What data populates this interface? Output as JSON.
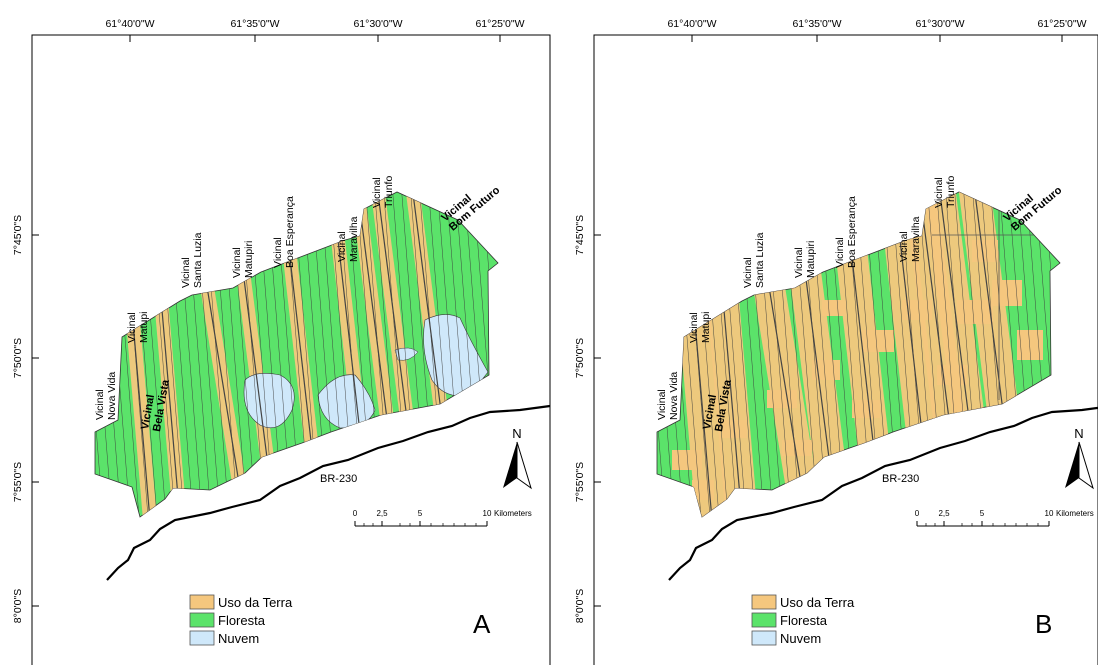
{
  "panels": [
    {
      "id": "A",
      "panel_letter": "A",
      "lon_labels": [
        "61°40'0\"W",
        "61°35'0\"W",
        "61°30'0\"W",
        "61°25'0\"W"
      ],
      "lat_labels": [
        "7°45'0\"S",
        "7°50'0\"S",
        "7°55'0\"S",
        "8°0'0\"S"
      ],
      "road_label": "BR-230",
      "north_label": "N",
      "scalebar": {
        "ticks": [
          "0",
          "2,5",
          "5",
          "10"
        ],
        "unit": "Kilometers"
      },
      "legend": [
        {
          "label": "Uso da Terra",
          "color": "#f5c77e"
        },
        {
          "label": "Floresta",
          "color": "#5be36a"
        },
        {
          "label": "Nuvem",
          "color": "#cfe8fa"
        }
      ],
      "roads": [
        {
          "lines": [
            "Vicinal",
            "Nova Vida"
          ]
        },
        {
          "lines": [
            "Vicinal",
            "Bela Vista"
          ]
        },
        {
          "lines": [
            "Vicinal",
            "Matupi"
          ]
        },
        {
          "lines": [
            "Vicinal",
            "Santa Luzia"
          ]
        },
        {
          "lines": [
            "Vicinal",
            "Matupiri"
          ]
        },
        {
          "lines": [
            "Vicinal",
            "Boa Esperança"
          ]
        },
        {
          "lines": [
            "Vicinal",
            "Maravilha"
          ]
        },
        {
          "lines": [
            "Vicinal",
            "Triunfo"
          ]
        },
        {
          "lines": [
            "Vicinal",
            "Bom Futuro"
          ]
        }
      ]
    },
    {
      "id": "B",
      "panel_letter": "B",
      "lon_labels": [
        "61°40'0\"W",
        "61°35'0\"W",
        "61°30'0\"W",
        "61°25'0\"W"
      ],
      "lat_labels": [
        "7°45'0\"S",
        "7°50'0\"S",
        "7°55'0\"S",
        "8°0'0\"S"
      ],
      "road_label": "BR-230",
      "north_label": "N",
      "scalebar": {
        "ticks": [
          "0",
          "2,5",
          "5",
          "10"
        ],
        "unit": "Kilometers"
      },
      "legend": [
        {
          "label": "Uso da Terra",
          "color": "#f5c77e"
        },
        {
          "label": "Floresta",
          "color": "#5be36a"
        },
        {
          "label": "Nuvem",
          "color": "#cfe8fa"
        }
      ],
      "roads": [
        {
          "lines": [
            "Vicinal",
            "Nova Vida"
          ]
        },
        {
          "lines": [
            "Vicinal",
            "Bela Vista"
          ]
        },
        {
          "lines": [
            "Vicinal",
            "Matupi"
          ]
        },
        {
          "lines": [
            "Vicinal",
            "Santa Luzia"
          ]
        },
        {
          "lines": [
            "Vicinal",
            "Matupiri"
          ]
        },
        {
          "lines": [
            "Vicinal",
            "Boa Esperança"
          ]
        },
        {
          "lines": [
            "Vicinal",
            "Maravilha"
          ]
        },
        {
          "lines": [
            "Vicinal",
            "Triunfo"
          ]
        },
        {
          "lines": [
            "Vicinal",
            "Bom Futuro"
          ]
        }
      ]
    }
  ],
  "colors": {
    "frame": "#000000",
    "parcel_line": "#3a3a3a",
    "highway": "#000000"
  }
}
